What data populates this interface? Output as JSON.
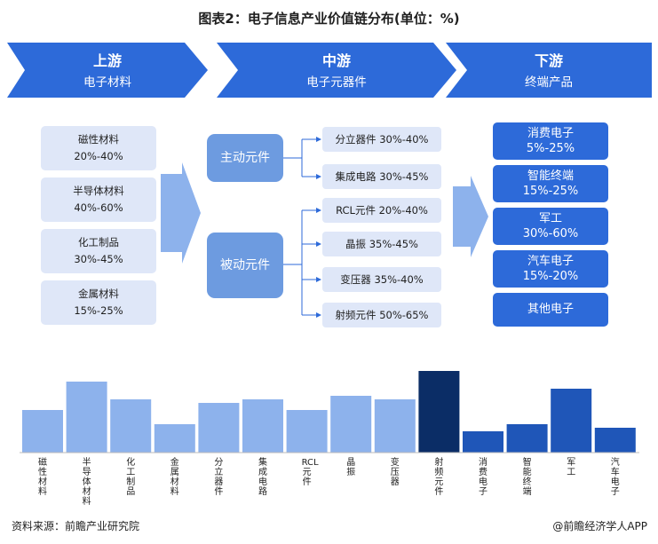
{
  "title": "图表2：电子信息产业价值链分布(单位：%)",
  "colors": {
    "chevron": "#2d6ad9",
    "light_box": "#dfe7f8",
    "mid_box": "#6d9be0",
    "product_box": "#2d6ad9",
    "bar_light": "#8db2ec",
    "bar_dark": "#0b2d66",
    "bar_mid": "#1f56b8"
  },
  "stages": [
    {
      "name": "上游",
      "sub": "电子材料"
    },
    {
      "name": "中游",
      "sub": "电子元器件"
    },
    {
      "name": "下游",
      "sub": "终端产品"
    }
  ],
  "upstream": [
    {
      "name": "磁性材料",
      "range": "20%-40%"
    },
    {
      "name": "半导体材料",
      "range": "40%-60%"
    },
    {
      "name": "化工制品",
      "range": "30%-45%"
    },
    {
      "name": "金属材料",
      "range": "15%-25%"
    }
  ],
  "midstream": {
    "active": "主动元件",
    "passive": "被动元件",
    "active_items": [
      {
        "name": "分立器件",
        "range": "30%-40%"
      },
      {
        "name": "集成电路",
        "range": "30%-45%"
      }
    ],
    "passive_items": [
      {
        "name": "RCL元件",
        "range": "20%-40%"
      },
      {
        "name": "晶振",
        "range": "35%-45%"
      },
      {
        "name": "变压器",
        "range": "35%-40%"
      },
      {
        "name": "射频元件",
        "range": "50%-65%"
      }
    ]
  },
  "downstream": [
    {
      "name": "消费电子",
      "range": "5%-25%"
    },
    {
      "name": "智能终端",
      "range": "15%-25%"
    },
    {
      "name": "军工",
      "range": "30%-60%"
    },
    {
      "name": "汽车电子",
      "range": "15%-20%"
    },
    {
      "name": "其他电子",
      "range": ""
    }
  ],
  "chart_data": {
    "type": "bar",
    "categories": [
      "磁性材料",
      "半导体材料",
      "化工制品",
      "金属材料",
      "分立器件",
      "集成电路",
      "RCL元件",
      "晶振",
      "变压器",
      "射频元件",
      "消费电子",
      "智能终端",
      "军工",
      "汽车电子"
    ],
    "values": [
      30,
      50,
      37.5,
      20,
      35,
      37.5,
      30,
      40,
      37.5,
      57.5,
      15,
      20,
      45,
      17.5
    ],
    "bar_colors": [
      "#8db2ec",
      "#8db2ec",
      "#8db2ec",
      "#8db2ec",
      "#8db2ec",
      "#8db2ec",
      "#8db2ec",
      "#8db2ec",
      "#8db2ec",
      "#0b2d66",
      "#1f56b8",
      "#1f56b8",
      "#1f56b8",
      "#1f56b8"
    ],
    "ylim": [
      0,
      65
    ],
    "grid": false,
    "title": "",
    "xlabel": "",
    "ylabel": ""
  },
  "source": "资料来源：前瞻产业研究院",
  "brand": "@前瞻经济学人APP"
}
